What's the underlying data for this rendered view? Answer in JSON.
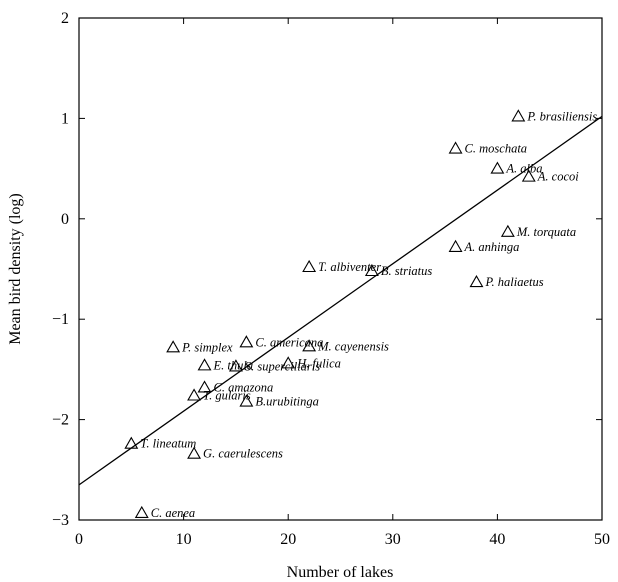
{
  "chart_data": {
    "type": "scatter",
    "xlabel": "Number of lakes",
    "ylabel": "Mean bird density (log)",
    "xlim": [
      0,
      50
    ],
    "ylim": [
      -3,
      2
    ],
    "xticks": [
      0,
      10,
      20,
      30,
      40,
      50
    ],
    "yticks": [
      -3,
      -2,
      -1,
      0,
      1,
      2
    ],
    "grid": false,
    "marker": "open-triangle",
    "points": [
      {
        "label": "P. brasiliensis",
        "x": 42,
        "y": 1.02
      },
      {
        "label": "C. moschata",
        "x": 36,
        "y": 0.7
      },
      {
        "label": "A. alba",
        "x": 40,
        "y": 0.5
      },
      {
        "label": "A. cocoi",
        "x": 43,
        "y": 0.42
      },
      {
        "label": "M. torquata",
        "x": 41,
        "y": -0.13
      },
      {
        "label": "A. anhinga",
        "x": 36,
        "y": -0.28
      },
      {
        "label": "T. albiventer",
        "x": 22,
        "y": -0.48
      },
      {
        "label": "B. striatus",
        "x": 28,
        "y": -0.52
      },
      {
        "label": "P. haliaetus",
        "x": 38,
        "y": -0.63
      },
      {
        "label": "P. simplex",
        "x": 9,
        "y": -1.28
      },
      {
        "label": "C. americana",
        "x": 16,
        "y": -1.23
      },
      {
        "label": "M. cayenensis",
        "x": 22,
        "y": -1.27
      },
      {
        "label": "E. thula",
        "x": 12,
        "y": -1.46
      },
      {
        "label": "S. superciliaris",
        "x": 15,
        "y": -1.47
      },
      {
        "label": "H. fulica",
        "x": 20,
        "y": -1.44
      },
      {
        "label": "C. amazona",
        "x": 12,
        "y": -1.68
      },
      {
        "label": "T. gularis",
        "x": 11,
        "y": -1.76
      },
      {
        "label": "B.urubitinga",
        "x": 16,
        "y": -1.82
      },
      {
        "label": "T. lineatum",
        "x": 5,
        "y": -2.24
      },
      {
        "label": "G. caerulescens",
        "x": 11,
        "y": -2.34
      },
      {
        "label": "C. aenea",
        "x": 6,
        "y": -2.93
      }
    ],
    "regression_line": {
      "x": [
        0,
        50
      ],
      "y": [
        -2.65,
        1.02
      ]
    }
  }
}
